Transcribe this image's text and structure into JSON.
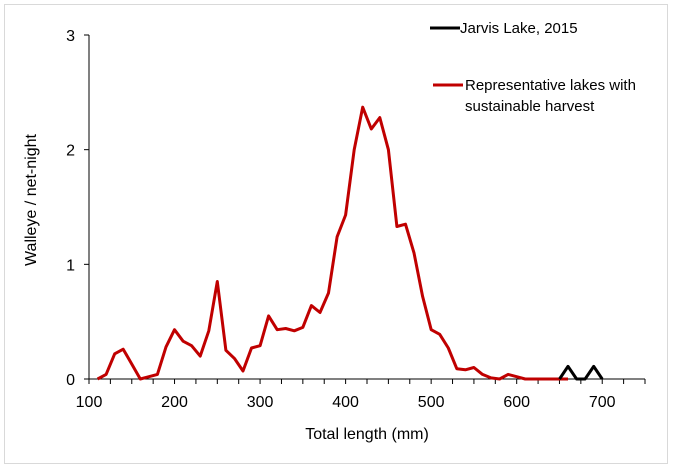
{
  "chart_data": {
    "type": "line",
    "xlabel": "Total length (mm)",
    "ylabel": "Walleye / net-night",
    "xlim": [
      100,
      750
    ],
    "ylim": [
      0,
      3
    ],
    "x_ticks": [
      100,
      200,
      300,
      400,
      500,
      600,
      700
    ],
    "y_ticks": [
      0,
      1,
      2,
      3
    ],
    "grid": false,
    "legend_position": "top-right",
    "series": [
      {
        "name": "Jarvis Lake, 2015",
        "color": "#000000",
        "x": [
          650,
          660,
          670,
          680,
          690,
          700
        ],
        "y": [
          0,
          0.11,
          0,
          0,
          0.11,
          0
        ]
      },
      {
        "name": "Representative lakes with sustainable harvest",
        "color": "#c00000",
        "x": [
          110,
          120,
          130,
          140,
          150,
          160,
          170,
          180,
          190,
          200,
          210,
          220,
          230,
          240,
          250,
          260,
          270,
          280,
          290,
          300,
          310,
          320,
          330,
          340,
          350,
          360,
          370,
          380,
          390,
          400,
          410,
          420,
          430,
          440,
          450,
          460,
          470,
          480,
          490,
          500,
          510,
          520,
          530,
          540,
          550,
          560,
          570,
          580,
          590,
          600,
          610,
          620,
          630,
          640,
          650,
          660
        ],
        "y": [
          0,
          0.04,
          0.22,
          0.26,
          0.13,
          0,
          0.02,
          0.04,
          0.28,
          0.43,
          0.33,
          0.29,
          0.2,
          0.42,
          0.85,
          0.25,
          0.18,
          0.07,
          0.27,
          0.29,
          0.55,
          0.43,
          0.44,
          0.42,
          0.45,
          0.64,
          0.58,
          0.75,
          1.24,
          1.43,
          2.0,
          2.37,
          2.18,
          2.28,
          2.0,
          1.33,
          1.35,
          1.1,
          0.72,
          0.43,
          0.39,
          0.27,
          0.09,
          0.08,
          0.1,
          0.04,
          0.01,
          0,
          0.04,
          0.02,
          0,
          0,
          0,
          0,
          0,
          0
        ]
      }
    ]
  }
}
